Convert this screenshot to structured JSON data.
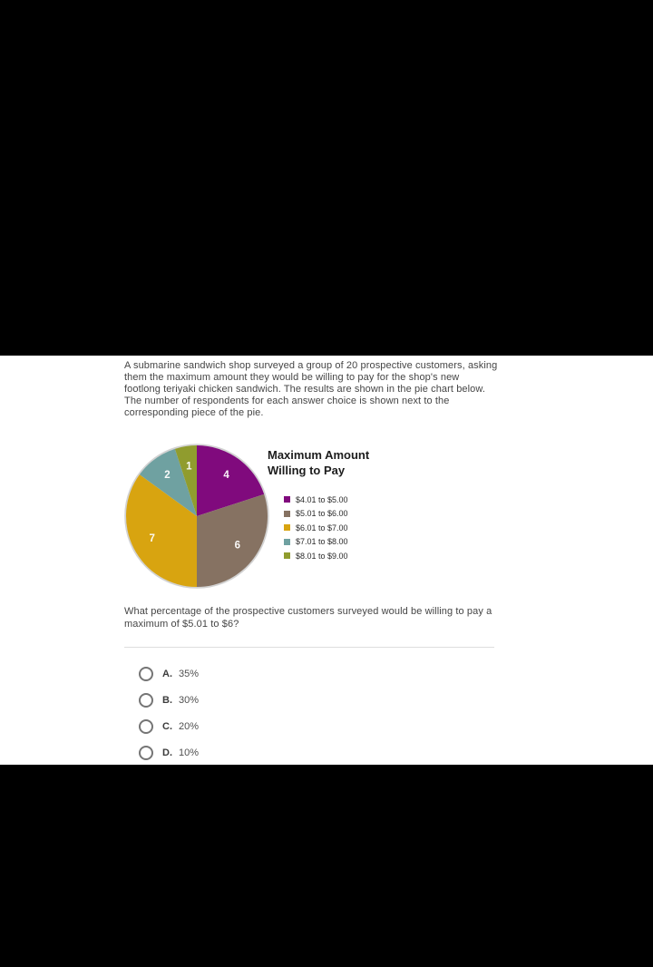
{
  "page": {
    "background_color": "#000000",
    "panel_color": "#ffffff"
  },
  "intro": {
    "text": "A submarine sandwich shop surveyed a group of 20 prospective customers, asking them the maximum amount they would be willing to pay for the shop's new footlong teriyaki chicken sandwich. The results are shown in the pie chart below. The number of respondents for each answer choice is shown next to the corresponding piece of the pie."
  },
  "chart_data": {
    "type": "pie",
    "title": "Maximum Amount Willing to Pay",
    "categories": [
      "$4.01 to $5.00",
      "$5.01 to $6.00",
      "$6.01 to $7.00",
      "$7.01 to $8.00",
      "$8.01 to $9.00"
    ],
    "values": [
      4,
      6,
      7,
      2,
      1
    ],
    "slice_labels": [
      "4",
      "6",
      "7",
      "2",
      "1"
    ],
    "colors": [
      "#800a7d",
      "#867262",
      "#d8a410",
      "#6fa1a1",
      "#909c2e"
    ],
    "total_respondents": 20,
    "start_angle": "top",
    "direction": "clockwise",
    "legend_position": "right",
    "slice_label_color": "#ffffff",
    "outer_ring_color": "#d2d2d2"
  },
  "question": {
    "text": "What percentage of the prospective customers surveyed would be willing to pay a maximum of $5.01 to $6?",
    "options": [
      {
        "letter": "A.",
        "label": "35%"
      },
      {
        "letter": "B.",
        "label": "30%"
      },
      {
        "letter": "C.",
        "label": "20%"
      },
      {
        "letter": "D.",
        "label": "10%"
      }
    ]
  }
}
